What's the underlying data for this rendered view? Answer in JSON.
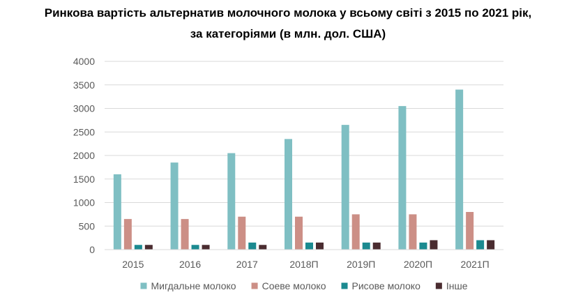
{
  "chart_data": {
    "type": "bar",
    "title_line1": "Ринкова вартість альтернатив молочного молока у всьому світі з 2015 по 2021 рік,",
    "title_line2": "за категоріями (в млн. дол. США)",
    "categories": [
      "2015",
      "2016",
      "2017",
      "2018П",
      "2019П",
      "2020П",
      "2021П"
    ],
    "series": [
      {
        "name": "Мигдальне молоко",
        "color": "#7fbfc3",
        "values": [
          1600,
          1850,
          2050,
          2350,
          2650,
          3050,
          3400
        ]
      },
      {
        "name": "Соеве молоко",
        "color": "#cc8f86",
        "values": [
          650,
          650,
          700,
          700,
          750,
          750,
          800
        ]
      },
      {
        "name": "Рисове молоко",
        "color": "#1b8a90",
        "values": [
          100,
          100,
          150,
          150,
          150,
          150,
          200
        ]
      },
      {
        "name": "Інше",
        "color": "#4a2c30",
        "values": [
          100,
          100,
          100,
          150,
          150,
          200,
          200
        ]
      }
    ],
    "ylim": [
      0,
      4000
    ],
    "yticks": [
      "0",
      "500",
      "1000",
      "1500",
      "2000",
      "2500",
      "3000",
      "3500",
      "4000"
    ],
    "grid": true,
    "legend_position": "bottom"
  }
}
